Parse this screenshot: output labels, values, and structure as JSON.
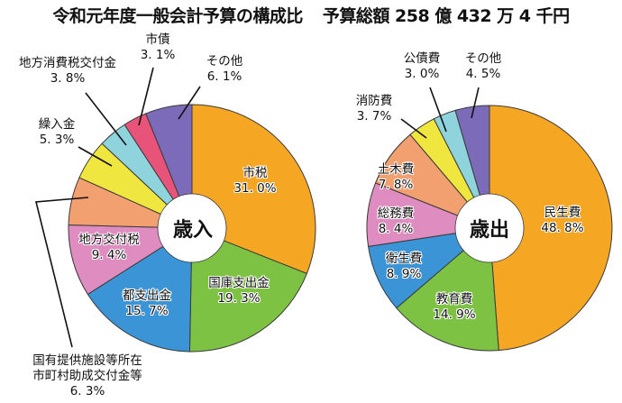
{
  "title": {
    "main": "令和元年度一般会計予算の構成比",
    "total": "予算総額 258 億 432 万 4 千円"
  },
  "chart_data": [
    {
      "type": "pie",
      "title": "歳入",
      "center_label": "歳入",
      "donut": true,
      "order": "clockwise from 12 o'clock",
      "categories": [
        "市税",
        "国庫支出金",
        "都支出金",
        "地方交付税",
        "国有提供施設等所在市町村助成交付金等",
        "繰入金",
        "地方消費税交付金",
        "市債",
        "その他"
      ],
      "values": [
        31.0,
        19.3,
        15.7,
        9.4,
        6.3,
        5.3,
        3.8,
        3.1,
        6.1
      ],
      "value_labels": [
        "31.0%",
        "19.3%",
        "15.7%",
        "9.4%",
        "6.3%",
        "5.3%",
        "3.8%",
        "3.1%",
        "6.1%"
      ],
      "colors": [
        "#F5A623",
        "#7DC242",
        "#3B94D6",
        "#DF8CC0",
        "#F2A070",
        "#F0E640",
        "#8FD3DC",
        "#E8537A",
        "#7B6BB8"
      ],
      "unit": "%"
    },
    {
      "type": "pie",
      "title": "歳出",
      "center_label": "歳出",
      "donut": true,
      "order": "clockwise from 12 o'clock",
      "categories": [
        "民生費",
        "教育費",
        "衛生費",
        "総務費",
        "土木費",
        "消防費",
        "公債費",
        "その他"
      ],
      "values": [
        48.8,
        14.9,
        8.9,
        8.4,
        7.8,
        3.7,
        3.0,
        4.5
      ],
      "value_labels": [
        "48.8%",
        "14.9%",
        "8.9%",
        "8.4%",
        "7.8%",
        "3.7%",
        "3.0%",
        "4.5%"
      ],
      "colors": [
        "#F5A623",
        "#7DC242",
        "#3B94D6",
        "#DF8CC0",
        "#F2A070",
        "#F0E640",
        "#8FD3DC",
        "#7B6BB8"
      ],
      "unit": "%"
    }
  ],
  "labels": {
    "revenue": {
      "shizei": {
        "name": "市税",
        "pct": "31. 0%"
      },
      "kokko": {
        "name": "国庫支出金",
        "pct": "19. 3%"
      },
      "toshishutsu": {
        "name": "都支出金",
        "pct": "15. 7%"
      },
      "chihokofu": {
        "name": "地方交付税",
        "pct": "9. 4%"
      },
      "kokuyu": {
        "name1": "国有提供施設等所在",
        "name2": "市町村助成交付金等",
        "pct": "6. 3%"
      },
      "kurire": {
        "name": "繰入金",
        "pct": "5. 3%"
      },
      "shohizei": {
        "name": "地方消費税交付金",
        "pct": "3. 8%"
      },
      "shisai": {
        "name": "市債",
        "pct": "3. 1%"
      },
      "sonota": {
        "name": "その他",
        "pct": "6. 1%"
      }
    },
    "expenditure": {
      "minsei": {
        "name": "民生費",
        "pct": "48. 8%"
      },
      "kyoiku": {
        "name": "教育費",
        "pct": "14. 9%"
      },
      "eisei": {
        "name": "衛生費",
        "pct": "8. 9%"
      },
      "somu": {
        "name": "総務費",
        "pct": "8. 4%"
      },
      "doboku": {
        "name": "土木費",
        "pct": "7. 8%"
      },
      "shobo": {
        "name": "消防費",
        "pct": "3. 7%"
      },
      "kosai": {
        "name": "公債費",
        "pct": "3. 0%"
      },
      "sonota": {
        "name": "その他",
        "pct": "4. 5%"
      }
    }
  }
}
